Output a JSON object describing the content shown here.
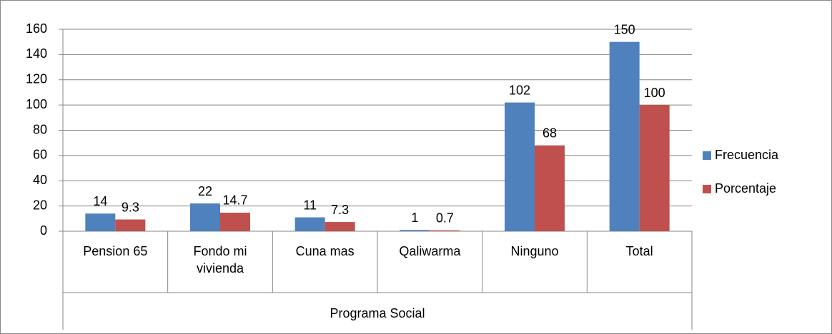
{
  "chart_data": {
    "type": "bar",
    "categories": [
      "Pension 65",
      "Fondo mi vivienda",
      "Cuna mas",
      "Qaliwarma",
      "Ninguno",
      "Total"
    ],
    "x_label": "Programa Social",
    "series": [
      {
        "name": "Frecuencia",
        "color": "#4f81bd",
        "values": [
          14,
          22,
          11,
          1,
          102,
          150
        ]
      },
      {
        "name": "Porcentaje",
        "color": "#c0504d",
        "values": [
          9.3,
          14.7,
          7.3,
          0.7,
          68,
          100
        ]
      }
    ],
    "ylim": [
      0,
      160
    ],
    "yticks": [
      0,
      20,
      40,
      60,
      80,
      100,
      120,
      140,
      160
    ],
    "grid": true,
    "legend": "right"
  }
}
